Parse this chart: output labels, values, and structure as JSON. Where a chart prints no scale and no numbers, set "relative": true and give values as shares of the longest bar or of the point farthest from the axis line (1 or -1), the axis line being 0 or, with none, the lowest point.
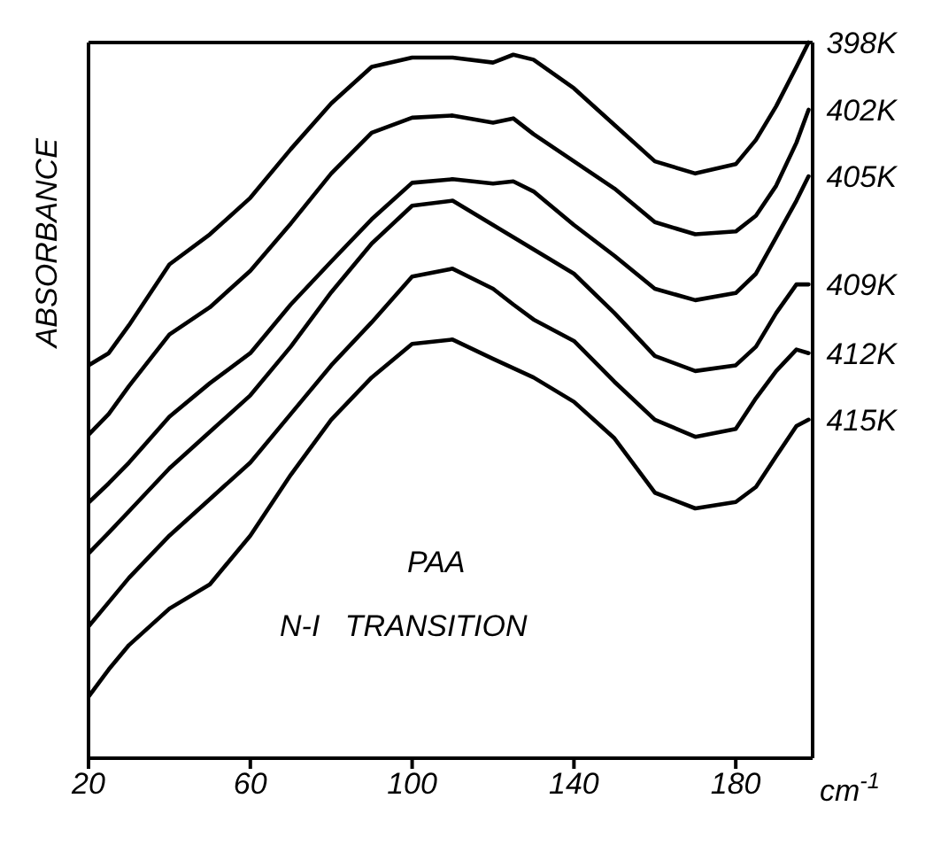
{
  "chart_data": {
    "type": "line",
    "relative": true,
    "xlabel": "cm$^{-1}$",
    "ylabel": "ABSORBANCE",
    "annotations": [
      "PAA",
      "N-I   TRANSITION"
    ],
    "marker": "none",
    "line_style": "solid",
    "x": [
      20,
      25,
      30,
      40,
      50,
      60,
      70,
      80,
      90,
      100,
      110,
      120,
      125,
      130,
      140,
      150,
      160,
      170,
      180,
      185,
      190,
      195,
      198
    ],
    "xlim": [
      20,
      199
    ],
    "xticks": [
      20,
      60,
      100,
      140,
      180
    ],
    "series": [
      {
        "name": "398K",
        "color": "#000000",
        "values": [
          0.549,
          0.566,
          0.605,
          0.69,
          0.732,
          0.783,
          0.851,
          0.915,
          0.966,
          0.979,
          0.979,
          0.972,
          0.983,
          0.976,
          0.936,
          0.885,
          0.834,
          0.817,
          0.83,
          0.864,
          0.911,
          0.966,
          1.0
        ]
      },
      {
        "name": "402K",
        "color": "#000000",
        "values": [
          0.452,
          0.481,
          0.52,
          0.592,
          0.63,
          0.681,
          0.747,
          0.817,
          0.874,
          0.895,
          0.898,
          0.888,
          0.894,
          0.872,
          0.834,
          0.796,
          0.749,
          0.732,
          0.736,
          0.758,
          0.8,
          0.86,
          0.906
        ]
      },
      {
        "name": "405K",
        "color": "#000000",
        "values": [
          0.357,
          0.384,
          0.413,
          0.477,
          0.524,
          0.566,
          0.634,
          0.694,
          0.753,
          0.804,
          0.809,
          0.803,
          0.806,
          0.792,
          0.745,
          0.702,
          0.656,
          0.64,
          0.65,
          0.677,
          0.728,
          0.779,
          0.813
        ]
      },
      {
        "name": "409K",
        "color": "#000000",
        "values": [
          0.286,
          0.315,
          0.345,
          0.405,
          0.456,
          0.507,
          0.575,
          0.651,
          0.719,
          0.772,
          0.779,
          0.745,
          0.728,
          0.711,
          0.677,
          0.622,
          0.562,
          0.541,
          0.549,
          0.575,
          0.622,
          0.662,
          0.662
        ]
      },
      {
        "name": "412K",
        "color": "#000000",
        "values": [
          0.184,
          0.218,
          0.252,
          0.311,
          0.362,
          0.413,
          0.481,
          0.549,
          0.609,
          0.673,
          0.684,
          0.656,
          0.634,
          0.613,
          0.583,
          0.526,
          0.473,
          0.449,
          0.46,
          0.503,
          0.541,
          0.571,
          0.566
        ]
      },
      {
        "name": "415K",
        "color": "#000000",
        "values": [
          0.086,
          0.124,
          0.158,
          0.209,
          0.243,
          0.311,
          0.396,
          0.473,
          0.532,
          0.579,
          0.585,
          0.558,
          0.545,
          0.532,
          0.498,
          0.447,
          0.371,
          0.349,
          0.358,
          0.379,
          0.422,
          0.464,
          0.473
        ]
      }
    ]
  }
}
